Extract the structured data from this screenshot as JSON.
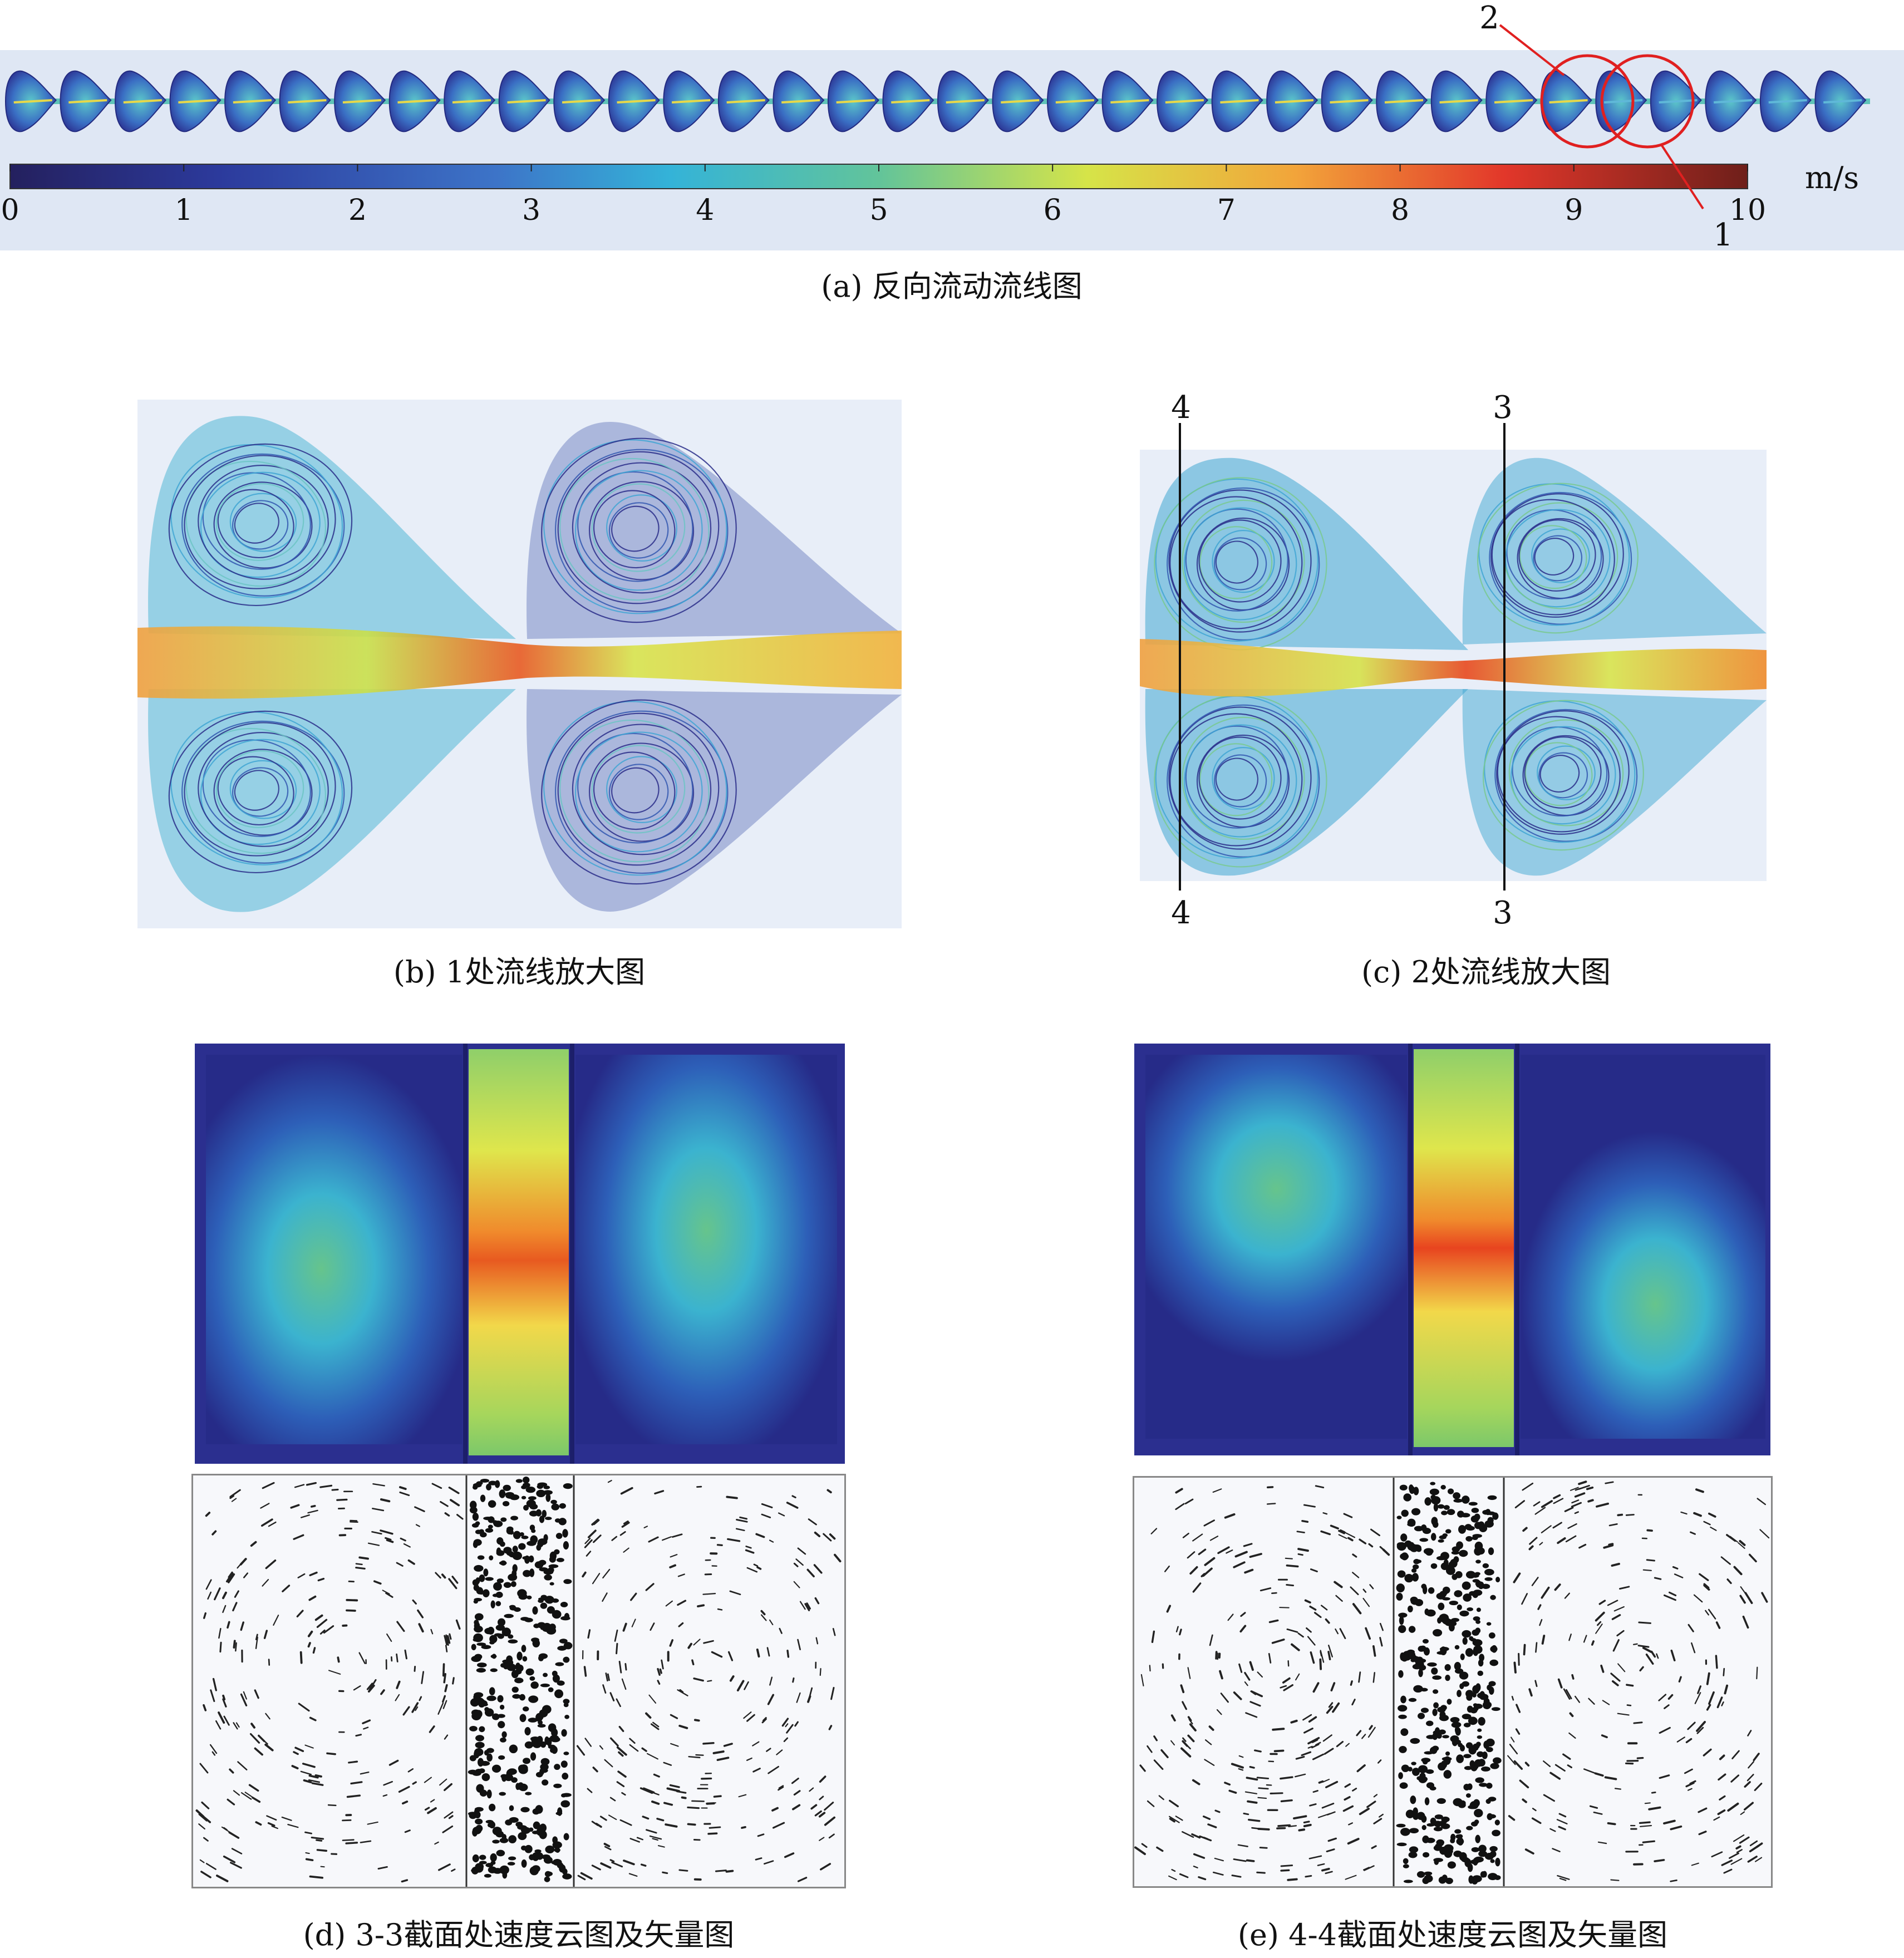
{
  "panel_a": {
    "caption": "(a) 反向流动流线图",
    "unit": "m/s",
    "ticks": [
      "0",
      "1",
      "2",
      "3",
      "4",
      "5",
      "6",
      "7",
      "8",
      "9",
      "10"
    ],
    "markers": {
      "one": "1",
      "two": "2"
    },
    "cell_count": 34
  },
  "panel_b": {
    "caption": "(b) 1处流线放大图"
  },
  "panel_c": {
    "caption": "(c) 2处流线放大图",
    "line_labels": {
      "left_top": "4",
      "left_bottom": "4",
      "right_top": "3",
      "right_bottom": "3"
    }
  },
  "panel_d": {
    "caption": "(d) 3-3截面处速度云图及矢量图"
  },
  "panel_e": {
    "caption": "(e) 4-4截面处速度云图及矢量图"
  },
  "colors": {
    "low": "#2b2f8f",
    "mid": "#2fb3c8",
    "green": "#7cc86a",
    "yellow": "#f2e24a",
    "high": "#e8441f",
    "marker": "#e02020"
  }
}
